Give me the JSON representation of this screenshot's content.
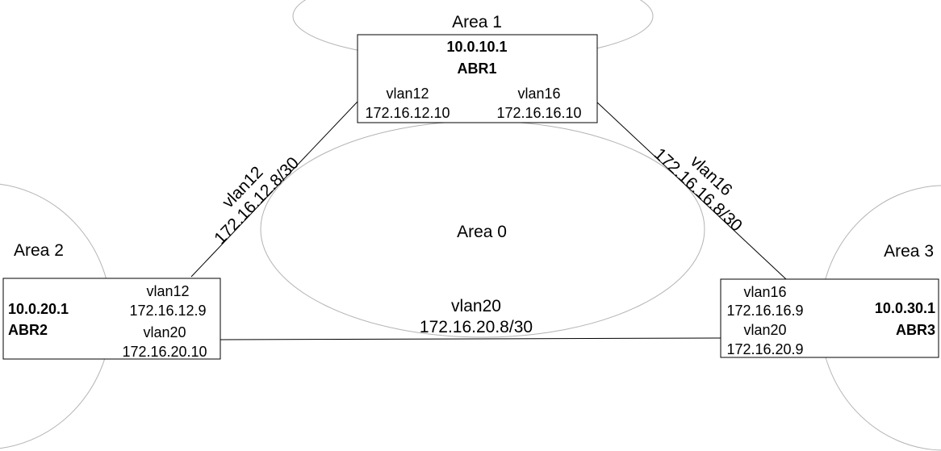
{
  "areas": {
    "area1": "Area 1",
    "area0": "Area 0",
    "area2": "Area 2",
    "area3": "Area 3"
  },
  "routers": {
    "abr1": {
      "router_id": "10.0.10.1",
      "name": "ABR1",
      "interfaces": [
        {
          "vlan": "vlan12",
          "ip": "172.16.12.10"
        },
        {
          "vlan": "vlan16",
          "ip": "172.16.16.10"
        }
      ]
    },
    "abr2": {
      "router_id": "10.0.20.1",
      "name": "ABR2",
      "interfaces": [
        {
          "vlan": "vlan12",
          "ip": "172.16.12.9"
        },
        {
          "vlan": "vlan20",
          "ip": "172.16.20.10"
        }
      ]
    },
    "abr3": {
      "router_id": "10.0.30.1",
      "name": "ABR3",
      "interfaces": [
        {
          "vlan": "vlan16",
          "ip": "172.16.16.9"
        },
        {
          "vlan": "vlan20",
          "ip": "172.16.20.9"
        }
      ]
    }
  },
  "links": {
    "vlan12": {
      "vlan": "vlan12",
      "subnet": "172.16.12.8/30"
    },
    "vlan16": {
      "vlan": "vlan16",
      "subnet": "172.16.16.8/30"
    },
    "vlan20": {
      "vlan": "vlan20",
      "subnet": "172.16.20.8/30"
    }
  },
  "colors": {
    "area_outline": "#b3b3b3",
    "link_line": "#000000",
    "router_border": "#000000",
    "background": "#ffffff"
  }
}
